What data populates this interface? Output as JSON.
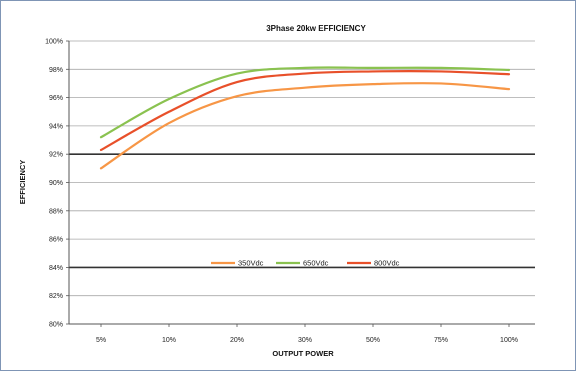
{
  "chart_data": {
    "type": "line",
    "title": "3Phase 20kw  EFFICIENCY",
    "xlabel": "OUTPUT POWER",
    "ylabel": "EFFICIENCY",
    "categories": [
      "5%",
      "10%",
      "20%",
      "30%",
      "50%",
      "75%",
      "100%"
    ],
    "y_tick_labels": [
      "80%",
      "82%",
      "84%",
      "86%",
      "88%",
      "90%",
      "92%",
      "94%",
      "96%",
      "98%",
      "100%"
    ],
    "ylim": [
      80,
      100
    ],
    "y_tick_step": 2,
    "grid": true,
    "legend_position": "bottom-center",
    "series": [
      {
        "name": "350Vdc",
        "color": "#f79646",
        "values": [
          91.0,
          94.2,
          96.1,
          96.7,
          96.95,
          97.0,
          96.6
        ]
      },
      {
        "name": "650Vdc",
        "color": "#8ac250",
        "values": [
          93.2,
          95.9,
          97.7,
          98.1,
          98.1,
          98.1,
          97.95
        ]
      },
      {
        "name": "800Vdc",
        "color": "#e8502a",
        "values": [
          92.3,
          95.0,
          97.1,
          97.7,
          97.85,
          97.85,
          97.65
        ]
      }
    ]
  }
}
